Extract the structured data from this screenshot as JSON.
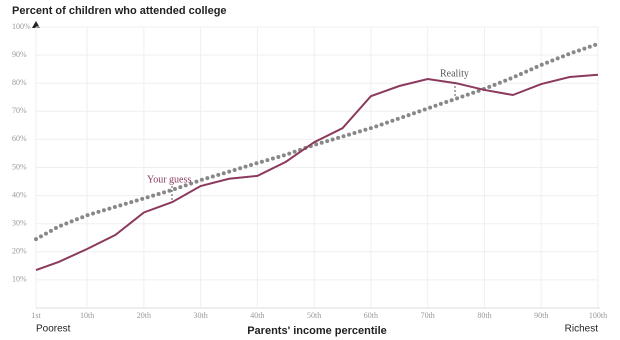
{
  "chart_data": {
    "type": "line",
    "title": "Percent of children who attended college",
    "x_label": "Parents' income percentile",
    "left_note": "Poorest",
    "right_note": "Richest",
    "x": [
      1,
      5,
      10,
      15,
      20,
      25,
      30,
      35,
      40,
      45,
      50,
      55,
      60,
      65,
      70,
      75,
      80,
      85,
      90,
      95,
      100
    ],
    "series": [
      {
        "name": "Your guess",
        "color": "#888888",
        "style": "dotted",
        "values": [
          24.5,
          29,
          33,
          36,
          39,
          42,
          45.5,
          48.5,
          51.6,
          54.5,
          58,
          61,
          64,
          67.5,
          71,
          74.5,
          78,
          82,
          86.5,
          90.5,
          94
        ]
      },
      {
        "name": "Reality",
        "color": "#8b3a5e",
        "style": "solid",
        "values": [
          13.5,
          16.4,
          21,
          26,
          34,
          37.7,
          43.4,
          46,
          47,
          52,
          59,
          64,
          75.4,
          79,
          81.5,
          80,
          77.6,
          75.8,
          79.7,
          82.2,
          83
        ]
      }
    ],
    "xlim": [
      1,
      100
    ],
    "xticks": [
      {
        "value": 1,
        "label": "1st"
      },
      {
        "value": 10,
        "label": "10th"
      },
      {
        "value": 20,
        "label": "20th"
      },
      {
        "value": 30,
        "label": "30th"
      },
      {
        "value": 40,
        "label": "40th"
      },
      {
        "value": 50,
        "label": "50th"
      },
      {
        "value": 60,
        "label": "60th"
      },
      {
        "value": 70,
        "label": "70th"
      },
      {
        "value": 80,
        "label": "80th"
      },
      {
        "value": 90,
        "label": "90th"
      },
      {
        "value": 100,
        "label": "100th"
      }
    ],
    "ylim": [
      0,
      100
    ],
    "yticks": [
      {
        "value": 10,
        "label": "10%"
      },
      {
        "value": 20,
        "label": "20%"
      },
      {
        "value": 30,
        "label": "30%"
      },
      {
        "value": 40,
        "label": "40%"
      },
      {
        "value": 50,
        "label": "50%"
      },
      {
        "value": 60,
        "label": "60%"
      },
      {
        "value": 70,
        "label": "70%"
      },
      {
        "value": 80,
        "label": "80%"
      },
      {
        "value": 90,
        "label": "90%"
      },
      {
        "value": 100,
        "label": "100%"
      }
    ],
    "grid": true
  }
}
